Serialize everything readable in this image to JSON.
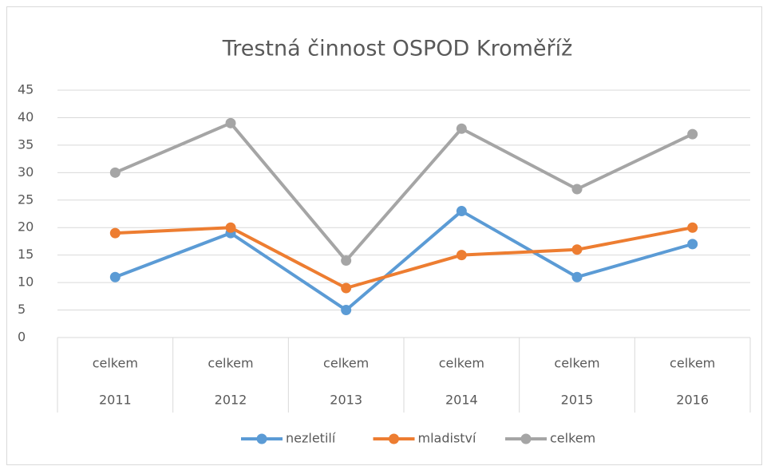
{
  "chart_data": {
    "type": "line",
    "title": "Trestná činnost OSPOD Kroměříž",
    "categories": [
      "2011",
      "2012",
      "2013",
      "2014",
      "2015",
      "2016"
    ],
    "category_sublabels": [
      "celkem",
      "celkem",
      "celkem",
      "celkem",
      "celkem",
      "celkem"
    ],
    "series": [
      {
        "name": "nezletilí",
        "color": "#5b9bd5",
        "values": [
          11,
          19,
          5,
          23,
          11,
          17
        ]
      },
      {
        "name": "mladiství",
        "color": "#ed7d31",
        "values": [
          19,
          20,
          9,
          15,
          16,
          20
        ]
      },
      {
        "name": "celkem",
        "color": "#a5a5a5",
        "values": [
          30,
          39,
          14,
          38,
          27,
          37
        ]
      }
    ],
    "ylim": [
      0,
      45
    ],
    "yticks": [
      0,
      5,
      10,
      15,
      20,
      25,
      30,
      35,
      40,
      45
    ],
    "grid": true,
    "legend": "bottom"
  }
}
